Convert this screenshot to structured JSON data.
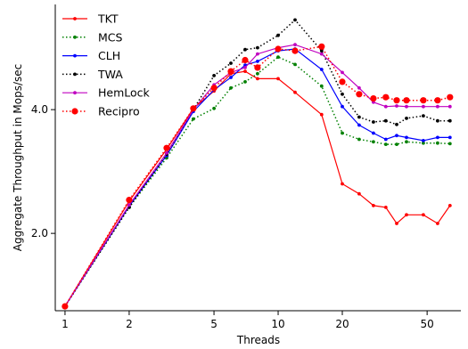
{
  "chart_data": {
    "type": "line",
    "title": "",
    "xlabel": "Threads",
    "ylabel": "Aggregate Throughput in Mops/sec",
    "xscale": "log",
    "xlim": [
      0.9,
      72
    ],
    "ylim": [
      0.75,
      5.7
    ],
    "xticks": [
      1,
      2,
      5,
      10,
      20,
      50
    ],
    "xtick_labels": [
      "1",
      "2",
      "5",
      "10",
      "20",
      "50"
    ],
    "yticks": [
      2.0,
      4.0
    ],
    "ytick_labels": [
      "2.0",
      "4.0"
    ],
    "grid": false,
    "legend_position": "top-left",
    "x": [
      1,
      2,
      3,
      4,
      5,
      6,
      7,
      8,
      10,
      12,
      16,
      20,
      24,
      28,
      32,
      36,
      40,
      48,
      56,
      64
    ],
    "series": [
      {
        "name": "TKT",
        "color": "#ff0000",
        "linestyle": "solid",
        "marker": "small-dot",
        "values": [
          0.82,
          2.52,
          3.36,
          4.02,
          4.3,
          4.58,
          4.62,
          4.5,
          4.5,
          4.28,
          3.92,
          2.8,
          2.64,
          2.45,
          2.42,
          2.16,
          2.3,
          2.3,
          2.16,
          2.45
        ]
      },
      {
        "name": "MCS",
        "color": "#008000",
        "linestyle": "dotted",
        "marker": "small-dot",
        "values": [
          0.82,
          2.42,
          3.22,
          3.85,
          4.02,
          4.35,
          4.45,
          4.58,
          4.85,
          4.73,
          4.38,
          3.62,
          3.52,
          3.48,
          3.44,
          3.44,
          3.48,
          3.46,
          3.46,
          3.45
        ]
      },
      {
        "name": "CLH",
        "color": "#0000ff",
        "linestyle": "solid",
        "marker": "small-dot",
        "values": [
          0.82,
          2.44,
          3.26,
          3.97,
          4.32,
          4.52,
          4.72,
          4.78,
          4.95,
          4.98,
          4.65,
          4.05,
          3.75,
          3.62,
          3.52,
          3.58,
          3.55,
          3.5,
          3.55,
          3.55
        ]
      },
      {
        "name": "TWA",
        "color": "#000000",
        "linestyle": "dotted",
        "marker": "small-dot",
        "values": [
          0.82,
          2.42,
          3.28,
          4.0,
          4.55,
          4.75,
          4.97,
          5.0,
          5.2,
          5.45,
          4.95,
          4.25,
          3.88,
          3.8,
          3.82,
          3.76,
          3.86,
          3.9,
          3.82,
          3.82
        ]
      },
      {
        "name": "HemLock",
        "color": "#c000c0",
        "linestyle": "solid",
        "marker": "small-dot",
        "values": [
          0.82,
          2.46,
          3.3,
          4.0,
          4.4,
          4.6,
          4.68,
          4.9,
          5.0,
          5.05,
          4.9,
          4.6,
          4.35,
          4.12,
          4.05,
          4.06,
          4.05,
          4.05,
          4.05,
          4.05
        ]
      },
      {
        "name": "Recipro",
        "color": "#ff0000",
        "linestyle": "dotted",
        "marker": "large-dot",
        "values": [
          0.82,
          2.54,
          3.38,
          4.02,
          4.35,
          4.62,
          4.8,
          4.68,
          4.98,
          4.95,
          5.02,
          4.45,
          4.25,
          4.18,
          4.2,
          4.15,
          4.15,
          4.15,
          4.15,
          4.2
        ]
      }
    ]
  }
}
